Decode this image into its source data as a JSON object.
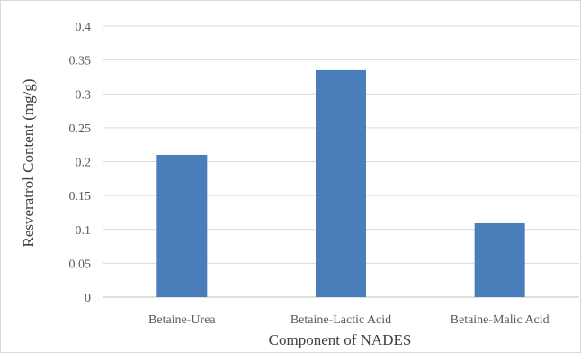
{
  "chart_data": {
    "type": "bar",
    "categories": [
      "Betaine-Urea",
      "Betaine-Lactic Acid",
      "Betaine-Malic Acid"
    ],
    "values": [
      0.21,
      0.335,
      0.109
    ],
    "yticks": [
      "0",
      "0.05",
      "0.1",
      "0.15",
      "0.2",
      "0.25",
      "0.3",
      "0.35",
      "0.4"
    ],
    "xlabel": "Component of NADES",
    "ylabel": "Resveratrol Content (mg/g)",
    "ylim": [
      0,
      0.4
    ],
    "grid": true,
    "bar_color": "#4a7ebb",
    "grid_color": "#d9d9d9"
  }
}
